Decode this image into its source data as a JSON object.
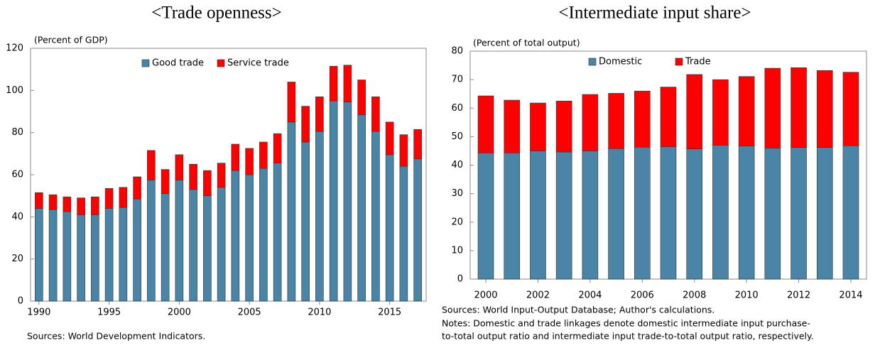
{
  "chart_data": [
    {
      "type": "bar",
      "stacked": true,
      "title": "<Trade openness>",
      "y_label": "(Percent of GDP)",
      "x": [
        1990,
        1991,
        1992,
        1993,
        1994,
        1995,
        1996,
        1997,
        1998,
        1999,
        2000,
        2001,
        2002,
        2003,
        2004,
        2005,
        2006,
        2007,
        2008,
        2009,
        2010,
        2011,
        2012,
        2013,
        2014,
        2015,
        2016,
        2017
      ],
      "series": [
        {
          "name": "Good trade",
          "color": "#4a85a8",
          "values": [
            44,
            43.5,
            42.5,
            41,
            41,
            44,
            44.5,
            48.5,
            57.5,
            51,
            57.5,
            53,
            50,
            54,
            62,
            60,
            63,
            65.5,
            85,
            75.5,
            80.5,
            95,
            94.5,
            88.5,
            80.5,
            69.5,
            64,
            67.5
          ]
        },
        {
          "name": "Service trade",
          "color": "#ff0000",
          "values": [
            7.5,
            7,
            7,
            8,
            8.5,
            9.5,
            9.5,
            10.5,
            14,
            11.5,
            12,
            12,
            12,
            11.5,
            12.5,
            12.5,
            12.5,
            14,
            19,
            17,
            16.5,
            16.5,
            17.5,
            16.5,
            16.5,
            15.5,
            15,
            14
          ]
        }
      ],
      "xlim": [
        1989.4,
        2017.6
      ],
      "xticks": [
        1990,
        1995,
        2000,
        2005,
        2010,
        2015
      ],
      "ylim": [
        0,
        120
      ],
      "yticks": [
        0,
        20,
        40,
        60,
        80,
        100,
        120
      ],
      "source": "Sources: World Development Indicators."
    },
    {
      "type": "bar",
      "stacked": true,
      "title": "<Intermediate input share>",
      "y_label": "(Percent of total output)",
      "x": [
        2000,
        2001,
        2002,
        2003,
        2004,
        2005,
        2006,
        2007,
        2008,
        2009,
        2010,
        2011,
        2012,
        2013,
        2014
      ],
      "series": [
        {
          "name": "Domestic",
          "color": "#4a85a8",
          "values": [
            44.3,
            44.3,
            45,
            44.6,
            45,
            45.8,
            46.3,
            46.5,
            45.7,
            47,
            46.7,
            46,
            46.2,
            46.2,
            46.8
          ]
        },
        {
          "name": "Trade",
          "color": "#ff0000",
          "values": [
            20,
            18.5,
            16.8,
            17.9,
            19.8,
            19.4,
            19.7,
            20.9,
            26.1,
            23,
            24.4,
            28,
            28,
            27,
            25.8
          ]
        }
      ],
      "xlim": [
        1999.4,
        2014.6
      ],
      "xticks": [
        2000,
        2002,
        2004,
        2006,
        2008,
        2010,
        2012,
        2014
      ],
      "ylim": [
        0,
        80
      ],
      "yticks": [
        0,
        10,
        20,
        30,
        40,
        50,
        60,
        70,
        80
      ],
      "source": "Sources: World Input-Output Database; Author's calculations.",
      "notes": [
        "Notes: Domestic and trade linkages denote domestic intermediate input purchase-",
        "to-total output ratio and intermediate input trade-to-total output ratio, respectively."
      ]
    }
  ]
}
